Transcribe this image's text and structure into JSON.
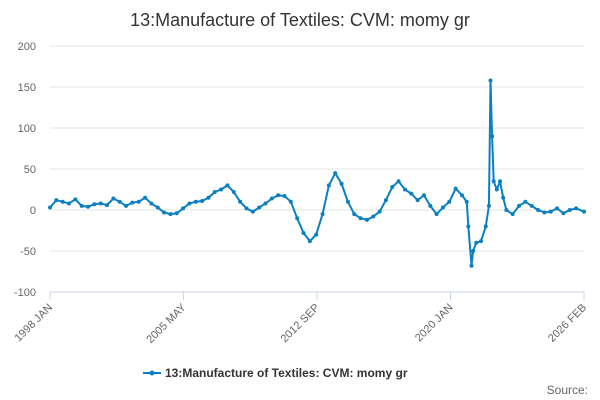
{
  "chart_data": {
    "type": "line",
    "title": "13:Manufacture of Textiles: CVM: momy gr",
    "xlabel": "",
    "ylabel": "",
    "ylim": [
      -100,
      200
    ],
    "y_ticks": [
      200,
      150,
      100,
      50,
      0,
      -50,
      -100
    ],
    "x_tick_labels": [
      "1998 JAN",
      "2005 MAY",
      "2012 SEP",
      "2020 JAN",
      "2026 FEB"
    ],
    "grid": "horizontal",
    "legend_position": "bottom",
    "color": "#0a7fc2",
    "series": [
      {
        "name": "13:Manufacture of Textiles: CVM: momy gr",
        "points": [
          [
            "1998-01",
            3
          ],
          [
            "1998-05",
            12
          ],
          [
            "1998-09",
            10
          ],
          [
            "1999-01",
            8
          ],
          [
            "1999-05",
            13
          ],
          [
            "1999-09",
            5
          ],
          [
            "2000-01",
            4
          ],
          [
            "2000-05",
            7
          ],
          [
            "2000-09",
            8
          ],
          [
            "2001-01",
            6
          ],
          [
            "2001-05",
            14
          ],
          [
            "2001-09",
            10
          ],
          [
            "2002-01",
            5
          ],
          [
            "2002-05",
            9
          ],
          [
            "2002-09",
            10
          ],
          [
            "2003-01",
            15
          ],
          [
            "2003-05",
            8
          ],
          [
            "2003-09",
            3
          ],
          [
            "2004-01",
            -3
          ],
          [
            "2004-05",
            -5
          ],
          [
            "2004-09",
            -4
          ],
          [
            "2005-01",
            2
          ],
          [
            "2005-05",
            8
          ],
          [
            "2005-09",
            10
          ],
          [
            "2006-01",
            11
          ],
          [
            "2006-05",
            15
          ],
          [
            "2006-09",
            22
          ],
          [
            "2007-01",
            25
          ],
          [
            "2007-05",
            30
          ],
          [
            "2007-09",
            22
          ],
          [
            "2008-01",
            10
          ],
          [
            "2008-05",
            2
          ],
          [
            "2008-09",
            -2
          ],
          [
            "2009-01",
            3
          ],
          [
            "2009-05",
            8
          ],
          [
            "2009-09",
            14
          ],
          [
            "2010-01",
            18
          ],
          [
            "2010-05",
            17
          ],
          [
            "2010-09",
            10
          ],
          [
            "2011-01",
            -10
          ],
          [
            "2011-05",
            -28
          ],
          [
            "2011-09",
            -38
          ],
          [
            "2012-01",
            -30
          ],
          [
            "2012-05",
            -5
          ],
          [
            "2012-09",
            30
          ],
          [
            "2013-01",
            45
          ],
          [
            "2013-05",
            32
          ],
          [
            "2013-09",
            10
          ],
          [
            "2014-01",
            -5
          ],
          [
            "2014-05",
            -10
          ],
          [
            "2014-09",
            -12
          ],
          [
            "2015-01",
            -8
          ],
          [
            "2015-05",
            -2
          ],
          [
            "2015-09",
            12
          ],
          [
            "2016-01",
            28
          ],
          [
            "2016-05",
            35
          ],
          [
            "2016-09",
            25
          ],
          [
            "2017-01",
            20
          ],
          [
            "2017-05",
            12
          ],
          [
            "2017-09",
            18
          ],
          [
            "2018-01",
            5
          ],
          [
            "2018-05",
            -5
          ],
          [
            "2018-09",
            3
          ],
          [
            "2019-01",
            10
          ],
          [
            "2019-05",
            26
          ],
          [
            "2019-09",
            18
          ],
          [
            "2019-12",
            10
          ],
          [
            "2020-01",
            -20
          ],
          [
            "2020-03",
            -68
          ],
          [
            "2020-04",
            -50
          ],
          [
            "2020-06",
            -40
          ],
          [
            "2020-09",
            -38
          ],
          [
            "2020-12",
            -20
          ],
          [
            "2021-02",
            5
          ],
          [
            "2021-03",
            158
          ],
          [
            "2021-04",
            90
          ],
          [
            "2021-05",
            35
          ],
          [
            "2021-07",
            25
          ],
          [
            "2021-09",
            35
          ],
          [
            "2021-11",
            15
          ],
          [
            "2022-01",
            0
          ],
          [
            "2022-05",
            -5
          ],
          [
            "2022-09",
            5
          ],
          [
            "2023-01",
            10
          ],
          [
            "2023-05",
            5
          ],
          [
            "2023-09",
            0
          ],
          [
            "2024-01",
            -3
          ],
          [
            "2024-05",
            -2
          ],
          [
            "2024-09",
            2
          ],
          [
            "2025-01",
            -4
          ],
          [
            "2025-05",
            0
          ],
          [
            "2025-09",
            2
          ],
          [
            "2026-02",
            -2
          ]
        ]
      }
    ]
  },
  "source_label": "Source:"
}
